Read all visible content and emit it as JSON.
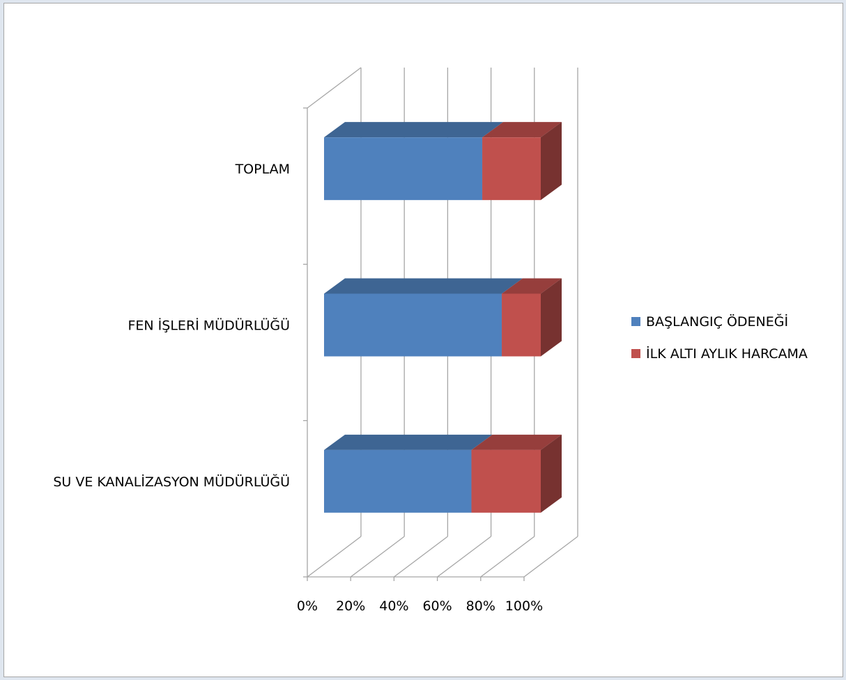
{
  "chart_data": {
    "type": "bar",
    "orientation": "horizontal",
    "stacking": "percent",
    "style": "3d",
    "title": "",
    "xlabel": "",
    "ylabel": "",
    "xlim": [
      0,
      100
    ],
    "x_ticks": [
      "0%",
      "20%",
      "40%",
      "60%",
      "80%",
      "100%"
    ],
    "categories": [
      "SU VE KANALİZASYON MÜDÜRLÜĞÜ",
      "FEN İŞLERİ MÜDÜRLÜĞÜ",
      "TOPLAM"
    ],
    "series": [
      {
        "name": "BAŞLANGIÇ ÖDENEĞİ",
        "values": [
          68,
          82,
          73
        ],
        "color": "#4f81bd"
      },
      {
        "name": "İLK ALTI AYLIK HARCAMA",
        "values": [
          32,
          18,
          27
        ],
        "color": "#c0504d"
      }
    ],
    "grid": true,
    "legend": "right"
  }
}
